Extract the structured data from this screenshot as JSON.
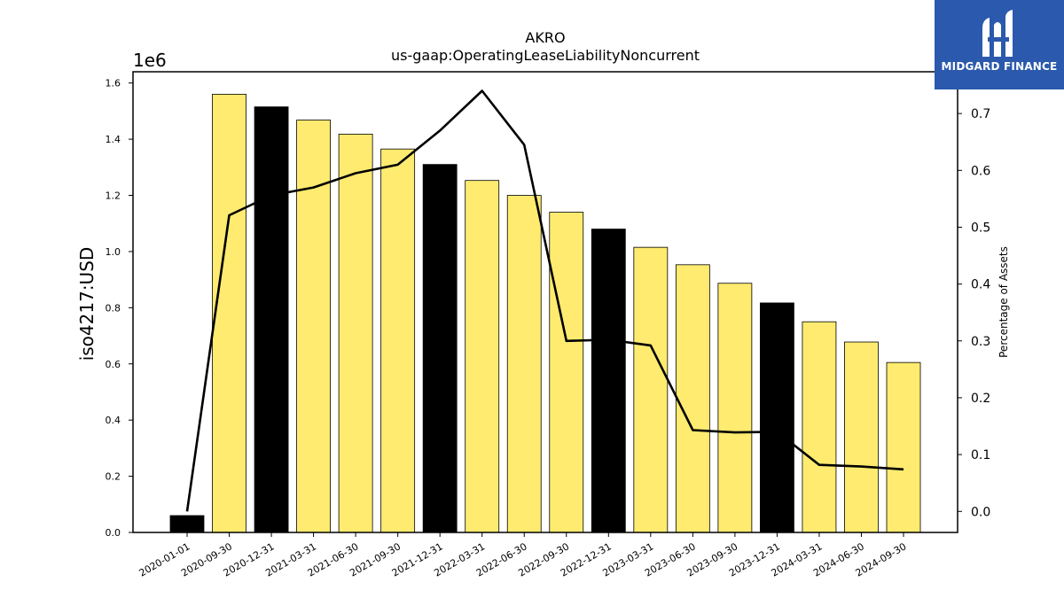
{
  "chart_data": {
    "type": "bar",
    "title": "AKRO",
    "subtitle": "us-gaap:OperatingLeaseLiabilityNoncurrent",
    "ylabel": "iso4217:USD",
    "y2label": "Percentage of Assets",
    "y_offset_label": "1e6",
    "ylim": [
      0,
      1640000
    ],
    "y2lim": [
      -0.037,
      0.7735
    ],
    "yticks": [
      "0.0",
      "0.2",
      "0.4",
      "0.6",
      "0.8",
      "1.0",
      "1.2",
      "1.4",
      "1.6"
    ],
    "y2ticks": [
      "0.0",
      "0.1",
      "0.2",
      "0.3",
      "0.4",
      "0.5",
      "0.6",
      "0.7"
    ],
    "categories": [
      "2020-01-01",
      "2020-09-30",
      "2020-12-31",
      "2021-03-31",
      "2021-06-30",
      "2021-09-30",
      "2021-12-31",
      "2022-03-31",
      "2022-06-30",
      "2022-09-30",
      "2022-12-31",
      "2023-03-31",
      "2023-06-30",
      "2023-09-30",
      "2023-12-31",
      "2024-03-31",
      "2024-06-30",
      "2024-09-30"
    ],
    "series": [
      {
        "type": "bar",
        "axis": "left",
        "values": [
          60000,
          1560000,
          1515000,
          1468000,
          1418000,
          1365000,
          1310000,
          1253000,
          1200000,
          1140000,
          1080000,
          1015000,
          953000,
          887000,
          817000,
          750000,
          678000,
          605000
        ],
        "colors": [
          "#000000",
          "#feeb6f",
          "#000000",
          "#feeb6f",
          "#feeb6f",
          "#feeb6f",
          "#000000",
          "#feeb6f",
          "#feeb6f",
          "#feeb6f",
          "#000000",
          "#feeb6f",
          "#feeb6f",
          "#feeb6f",
          "#000000",
          "#feeb6f",
          "#feeb6f",
          "#feeb6f"
        ]
      },
      {
        "type": "line",
        "axis": "right",
        "color": "#000000",
        "values": [
          0.0,
          0.521,
          0.556,
          0.57,
          0.595,
          0.61,
          0.67,
          0.74,
          0.645,
          0.3,
          0.302,
          0.292,
          0.143,
          0.139,
          0.14,
          0.082,
          0.079,
          0.074
        ]
      }
    ],
    "grid": false,
    "legend": "none"
  },
  "logo": {
    "text": "MIDGARD FINANCE",
    "icon": "midgard-logo-icon",
    "color": "#2b59ad"
  }
}
